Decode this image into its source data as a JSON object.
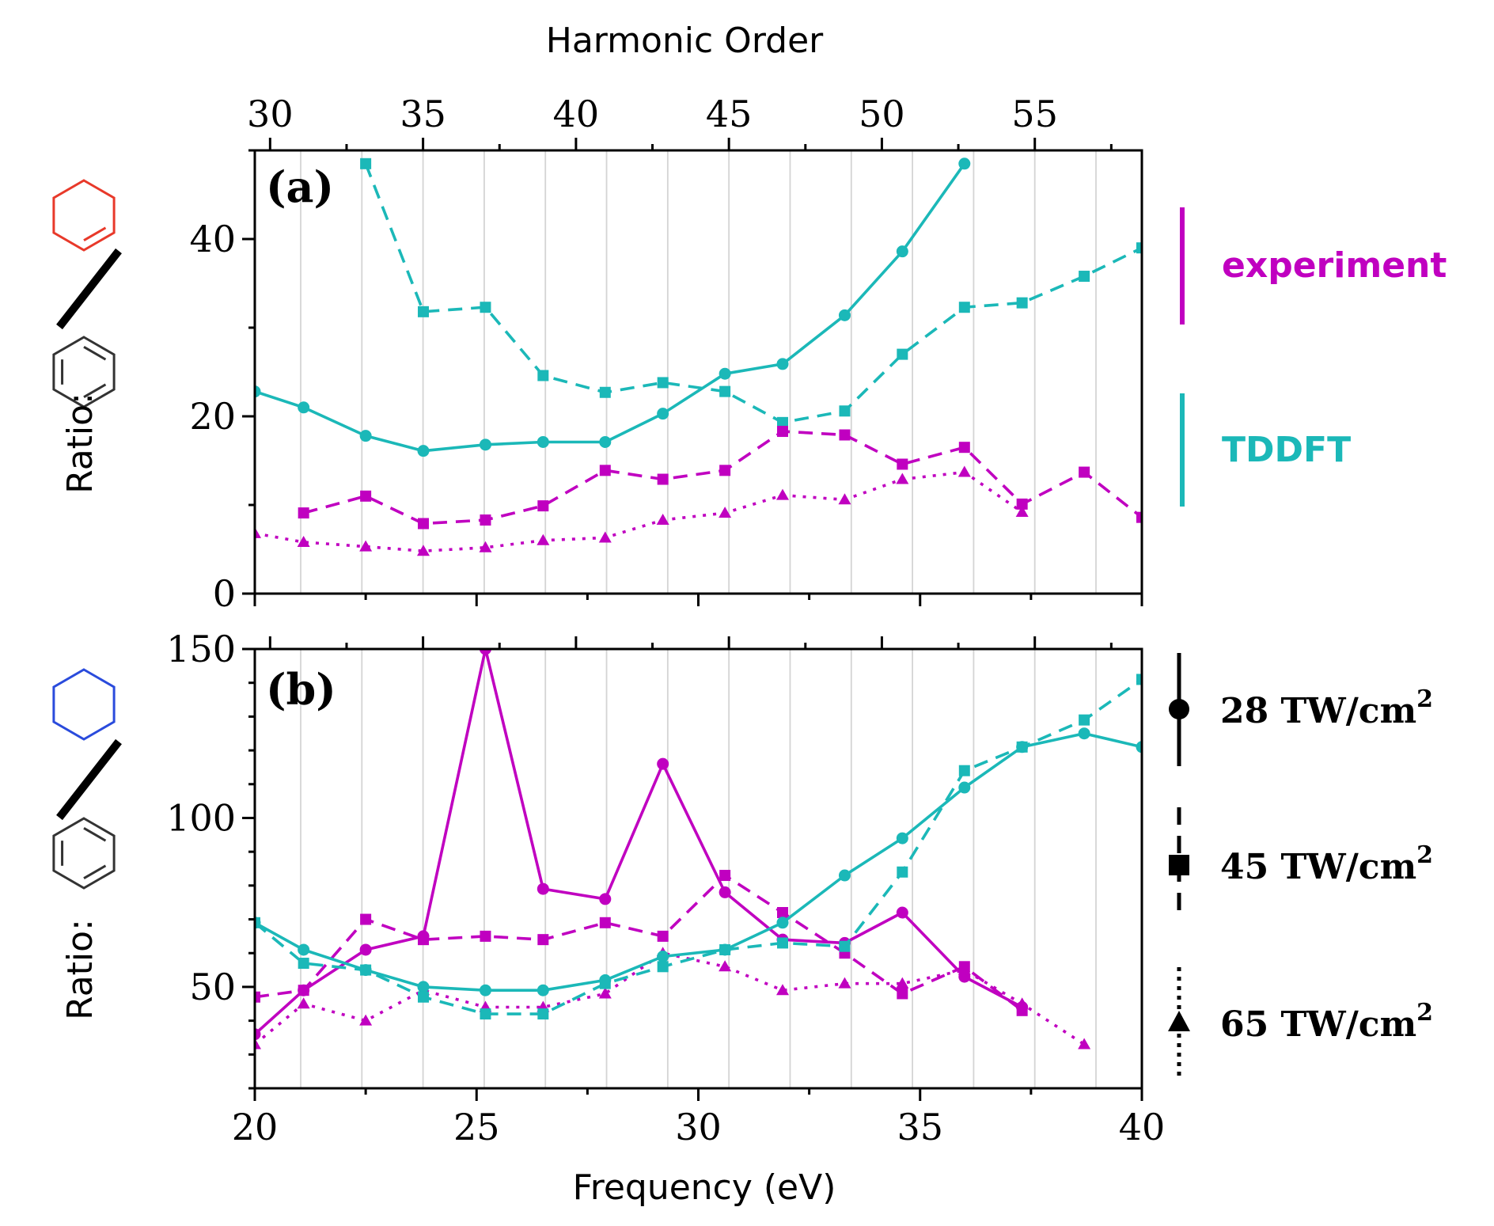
{
  "colors": {
    "experiment": "#c000c0",
    "tddft": "#1bb8b8",
    "benzene": "#333333",
    "cyclohexene": "#e8392a",
    "cyclohexane": "#2a4bdc"
  },
  "chart_data": {
    "type": "line",
    "top_axis": {
      "title": "Harmonic Order",
      "ticks": [
        30,
        35,
        40,
        45,
        50,
        55
      ],
      "range": [
        29.5,
        58.5
      ]
    },
    "x_axis": {
      "title": "Frequency (eV)",
      "ticks": [
        20,
        25,
        30,
        35,
        40
      ],
      "range": [
        20,
        40
      ]
    },
    "ylabel_prefix": "Ratio:",
    "legend": {
      "methods": [
        {
          "label": "experiment",
          "color": "experiment"
        },
        {
          "label": "TDDFT",
          "color": "tddft"
        }
      ],
      "intensities": [
        {
          "label": "28 TW/cm",
          "sup": "2",
          "style": "solid",
          "marker": "circle"
        },
        {
          "label": "45 TW/cm",
          "sup": "2",
          "style": "dashed",
          "marker": "square"
        },
        {
          "label": "65 TW/cm",
          "sup": "2",
          "style": "dotted",
          "marker": "triangle"
        }
      ]
    },
    "panels": [
      {
        "label": "(a)",
        "molecule_numerator": "cyclohexene",
        "molecule_denominator": "benzene",
        "ylim": [
          0,
          50
        ],
        "yticks": [
          0,
          20,
          40
        ],
        "series": [
          {
            "name": "TDDFT 28 TW/cm2",
            "group": "tddft",
            "style": "solid",
            "marker": "circle",
            "x": [
              20.0,
              21.1,
              22.5,
              23.8,
              25.2,
              26.5,
              27.9,
              29.2,
              30.6,
              31.9,
              33.3,
              34.6,
              36.0
            ],
            "y": [
              22.8,
              21.0,
              17.8,
              16.1,
              16.8,
              17.1,
              17.1,
              20.3,
              24.8,
              25.9,
              31.4,
              38.6,
              48.5
            ]
          },
          {
            "name": "TDDFT 45 TW/cm2",
            "group": "tddft",
            "style": "dashed",
            "marker": "square",
            "x": [
              22.5,
              23.8,
              25.2,
              26.5,
              27.9,
              29.2,
              30.6,
              31.9,
              33.3,
              34.6,
              36.0,
              37.3,
              38.7,
              40.0
            ],
            "y": [
              48.5,
              31.8,
              32.3,
              24.6,
              22.7,
              23.8,
              22.8,
              19.3,
              20.6,
              27.0,
              32.3,
              32.8,
              35.8,
              39.0
            ]
          },
          {
            "name": "Experiment 45 TW/cm2",
            "group": "experiment",
            "style": "dashed",
            "marker": "square",
            "x": [
              21.1,
              22.5,
              23.8,
              25.2,
              26.5,
              27.9,
              29.2,
              30.6,
              31.9,
              33.3,
              34.6,
              36.0,
              37.3,
              38.7,
              40.0
            ],
            "y": [
              9.1,
              11.0,
              7.9,
              8.3,
              9.9,
              13.9,
              12.9,
              13.9,
              18.3,
              17.9,
              14.6,
              16.5,
              10.1,
              13.7,
              8.6
            ]
          },
          {
            "name": "Experiment 65 TW/cm2",
            "group": "experiment",
            "style": "dotted",
            "marker": "triangle",
            "x": [
              20.0,
              21.1,
              22.5,
              23.8,
              25.2,
              26.5,
              27.9,
              29.2,
              30.6,
              31.9,
              33.3,
              34.6,
              36.0,
              37.3
            ],
            "y": [
              6.8,
              5.8,
              5.3,
              4.8,
              5.2,
              6.0,
              6.3,
              8.3,
              9.1,
              11.1,
              10.6,
              12.9,
              13.7,
              9.2
            ]
          }
        ]
      },
      {
        "label": "(b)",
        "molecule_numerator": "cyclohexane",
        "molecule_denominator": "benzene",
        "ylim": [
          20,
          150
        ],
        "yticks": [
          50,
          100,
          150
        ],
        "series": [
          {
            "name": "Experiment 28 TW/cm2",
            "group": "experiment",
            "style": "solid",
            "marker": "circle",
            "x": [
              20.0,
              21.1,
              22.5,
              23.8,
              25.2,
              26.5,
              27.9,
              29.2,
              30.6,
              31.9,
              33.3,
              34.6,
              36.0,
              37.3
            ],
            "y": [
              36,
              49,
              61,
              65,
              150,
              79,
              76,
              116,
              78,
              64,
              63,
              72,
              53,
              44
            ]
          },
          {
            "name": "Experiment 45 TW/cm2",
            "group": "experiment",
            "style": "dashed",
            "marker": "square",
            "x": [
              20.0,
              21.1,
              22.5,
              23.8,
              25.2,
              26.5,
              27.9,
              29.2,
              30.6,
              31.9,
              33.3,
              34.6,
              36.0,
              37.3
            ],
            "y": [
              47,
              49,
              70,
              64,
              65,
              64,
              69,
              65,
              83,
              72,
              60,
              48,
              56,
              43
            ]
          },
          {
            "name": "Experiment 65 TW/cm2",
            "group": "experiment",
            "style": "dotted",
            "marker": "triangle",
            "x": [
              20.0,
              21.1,
              22.5,
              23.8,
              25.2,
              26.5,
              27.9,
              29.2,
              30.6,
              31.9,
              33.3,
              34.6,
              36.0,
              37.3,
              38.7
            ],
            "y": [
              33,
              45,
              40,
              49,
              44,
              44,
              48,
              60,
              56,
              49,
              51,
              51,
              55,
              45,
              33
            ]
          },
          {
            "name": "TDDFT 28 TW/cm2",
            "group": "tddft",
            "style": "solid",
            "marker": "circle",
            "x": [
              20.0,
              21.1,
              22.5,
              23.8,
              25.2,
              26.5,
              27.9,
              29.2,
              30.6,
              31.9,
              33.3,
              34.6,
              36.0,
              37.3,
              38.7,
              40.0
            ],
            "y": [
              69,
              61,
              55,
              50,
              49,
              49,
              52,
              59,
              61,
              69,
              83,
              94,
              109,
              121,
              125,
              121
            ]
          },
          {
            "name": "TDDFT 45 TW/cm2",
            "group": "tddft",
            "style": "dashed",
            "marker": "square",
            "x": [
              20.0,
              21.1,
              22.5,
              23.8,
              25.2,
              26.5,
              27.9,
              29.2,
              30.6,
              31.9,
              33.3,
              34.6,
              36.0,
              37.3,
              38.7,
              40.0
            ],
            "y": [
              69,
              57,
              55,
              47,
              42,
              42,
              51,
              56,
              61,
              63,
              62,
              84,
              114,
              121,
              129,
              141
            ]
          }
        ]
      }
    ]
  }
}
